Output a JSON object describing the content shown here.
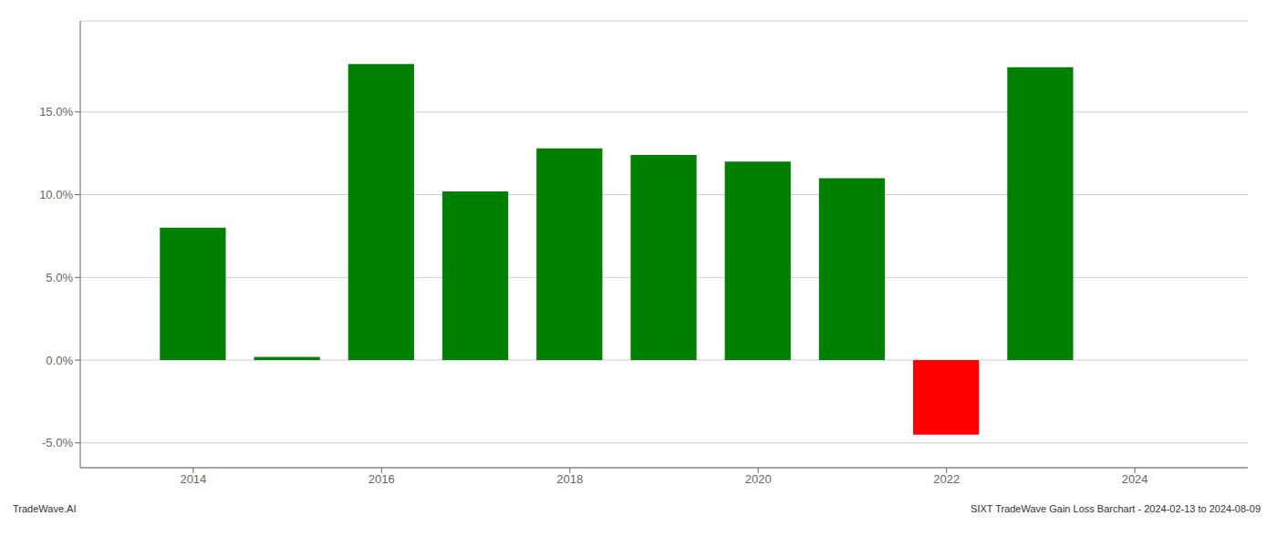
{
  "chart_data": {
    "type": "bar",
    "x": [
      2014,
      2015,
      2016,
      2017,
      2018,
      2019,
      2020,
      2021,
      2022,
      2023
    ],
    "values": [
      0.08,
      0.002,
      0.179,
      0.102,
      0.128,
      0.124,
      0.12,
      0.11,
      -0.045,
      0.177
    ],
    "colors": [
      "#008000",
      "#008000",
      "#008000",
      "#008000",
      "#008000",
      "#008000",
      "#008000",
      "#008000",
      "#ff0000",
      "#008000"
    ],
    "xlim": [
      2012.8,
      2025.2
    ],
    "xticks": [
      2014,
      2016,
      2018,
      2020,
      2022,
      2024
    ],
    "ylim": [
      -0.065,
      0.205
    ],
    "yticks": [
      {
        "value": -0.05,
        "label": "-5.0%"
      },
      {
        "value": 0.0,
        "label": "0.0%"
      },
      {
        "value": 0.05,
        "label": "5.0%"
      },
      {
        "value": 0.1,
        "label": "10.0%"
      },
      {
        "value": 0.15,
        "label": "15.0%"
      }
    ],
    "grid": true,
    "annotations": [
      "TradeWave.AI",
      "SIXT TradeWave Gain Loss Barchart - 2024-02-13 to 2024-08-09"
    ]
  }
}
